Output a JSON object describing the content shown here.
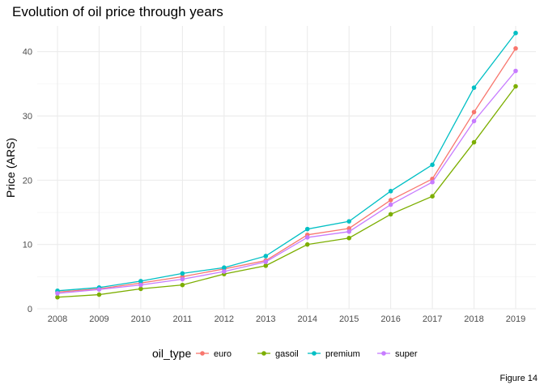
{
  "caption": "Figure 14",
  "chart_data": {
    "type": "line",
    "title": "Evolution of oil price through years",
    "xlabel": "",
    "ylabel": "Price (ARS)",
    "x": [
      2008,
      2009,
      2010,
      2011,
      2012,
      2013,
      2014,
      2015,
      2016,
      2017,
      2018,
      2019
    ],
    "xlim": [
      2008,
      2019
    ],
    "ylim": [
      0,
      44
    ],
    "yticks": [
      0,
      10,
      20,
      30,
      40
    ],
    "grid": true,
    "legend": {
      "title": "oil_type",
      "position": "bottom"
    },
    "series": [
      {
        "name": "euro",
        "color": "#F8766D",
        "values": [
          2.6,
          3.1,
          4.0,
          5.0,
          6.2,
          7.5,
          11.5,
          12.5,
          16.9,
          20.2,
          30.6,
          40.5
        ]
      },
      {
        "name": "gasoil",
        "color": "#7CAE00",
        "values": [
          1.8,
          2.2,
          3.1,
          3.7,
          5.4,
          6.7,
          10.0,
          11.0,
          14.7,
          17.5,
          25.9,
          34.6
        ]
      },
      {
        "name": "premium",
        "color": "#00BFC4",
        "values": [
          2.8,
          3.3,
          4.3,
          5.5,
          6.4,
          8.2,
          12.4,
          13.6,
          18.3,
          22.4,
          34.4,
          42.9
        ]
      },
      {
        "name": "super",
        "color": "#C77CFF",
        "values": [
          2.4,
          3.0,
          3.7,
          4.6,
          5.8,
          7.3,
          11.1,
          12.0,
          16.2,
          19.7,
          29.2,
          37.0
        ]
      }
    ]
  }
}
